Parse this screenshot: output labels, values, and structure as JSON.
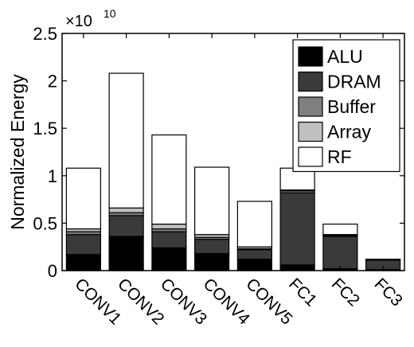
{
  "chart_data": {
    "type": "bar",
    "stacked": true,
    "ylabel": "Normalized Energy",
    "y_multiplier": "×10",
    "y_multiplier_exp": "10",
    "ylim": [
      0,
      2.5
    ],
    "yticks": [
      0,
      0.5,
      1,
      1.5,
      2,
      2.5
    ],
    "ytick_labels": [
      "0",
      "0.5",
      "1",
      "1.5",
      "2",
      "2.5"
    ],
    "grid": false,
    "legend_position": "top-right",
    "categories": [
      "CONV1",
      "CONV2",
      "CONV3",
      "CONV4",
      "CONV5",
      "FC1",
      "FC2",
      "FC3"
    ],
    "series": [
      {
        "name": "ALU",
        "color": "#000000",
        "values": [
          0.17,
          0.36,
          0.24,
          0.18,
          0.12,
          0.06,
          0.02,
          0.01
        ]
      },
      {
        "name": "DRAM",
        "color": "#3a3a3a",
        "values": [
          0.21,
          0.22,
          0.17,
          0.15,
          0.1,
          0.76,
          0.34,
          0.1
        ]
      },
      {
        "name": "Buffer",
        "color": "#7f7f7f",
        "values": [
          0.03,
          0.03,
          0.03,
          0.02,
          0.01,
          0.02,
          0.01,
          0.0
        ]
      },
      {
        "name": "Array",
        "color": "#c0c0c0",
        "values": [
          0.03,
          0.05,
          0.05,
          0.03,
          0.02,
          0.01,
          0.01,
          0.0
        ]
      },
      {
        "name": "RF",
        "color": "#ffffff",
        "values": [
          0.64,
          1.42,
          0.94,
          0.71,
          0.48,
          0.23,
          0.11,
          0.01
        ]
      }
    ]
  }
}
